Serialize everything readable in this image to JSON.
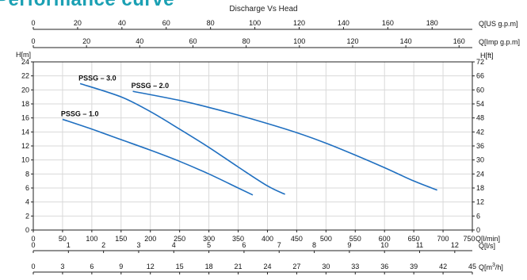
{
  "page": {
    "title": "Performance curve"
  },
  "chart_data": {
    "type": "line",
    "title": "Discharge Vs Head",
    "x_axis": {
      "label": "Q[l/min]",
      "ticks": [
        0,
        50,
        100,
        150,
        200,
        250,
        300,
        350,
        400,
        450,
        500,
        550,
        600,
        650,
        700,
        750
      ],
      "xlim": [
        0,
        750
      ]
    },
    "y_axis": {
      "label": "H[m]",
      "ticks": [
        0,
        2,
        4,
        6,
        8,
        10,
        12,
        14,
        16,
        18,
        20,
        22,
        24
      ],
      "ylim": [
        0,
        24
      ]
    },
    "y_axis_right": {
      "label": "H[ft]",
      "ticks": [
        0,
        6,
        12,
        18,
        24,
        30,
        36,
        42,
        48,
        54,
        60,
        66,
        72
      ],
      "ylim": [
        0,
        72
      ]
    },
    "top_axes": [
      {
        "label": "Q[US g.p.m]",
        "ticks": [
          0,
          20,
          40,
          60,
          80,
          100,
          120,
          140,
          160,
          180
        ],
        "lpm_per_unit": 3.785
      },
      {
        "label": "Q[Imp g.p.m]",
        "ticks": [
          0,
          20,
          40,
          60,
          80,
          100,
          120,
          140,
          160
        ],
        "lpm_per_unit": 4.546
      }
    ],
    "bottom_axes": [
      {
        "label": "Q[l/s]",
        "ticks": [
          0,
          1,
          2,
          3,
          4,
          5,
          6,
          7,
          8,
          9,
          10,
          11,
          12
        ],
        "lpm_per_unit": 60
      },
      {
        "label": "Q[m3/h]",
        "label_base": "Q[m",
        "label_sup": "3",
        "label_tail": "/h]",
        "ticks": [
          0,
          3,
          6,
          9,
          12,
          15,
          18,
          21,
          24,
          27,
          30,
          33,
          36,
          39,
          42,
          45
        ],
        "lpm_per_unit": 16.667
      }
    ],
    "series": [
      {
        "name": "PSSG – 1.0",
        "color": "#1f6fc0",
        "x": [
          50,
          100,
          150,
          200,
          250,
          300,
          350,
          375
        ],
        "y": [
          15.8,
          14.4,
          12.9,
          11.4,
          9.8,
          8.0,
          6.0,
          5.0
        ]
      },
      {
        "name": "PSSG – 3.0",
        "color": "#1f6fc0",
        "x": [
          80,
          150,
          200,
          250,
          300,
          350,
          400,
          430
        ],
        "y": [
          20.9,
          19.0,
          16.9,
          14.4,
          11.8,
          9.0,
          6.3,
          5.1
        ]
      },
      {
        "name": "PSSG – 2.0",
        "color": "#1f6fc0",
        "x": [
          170,
          250,
          300,
          350,
          400,
          450,
          500,
          550,
          600,
          650,
          690
        ],
        "y": [
          19.8,
          18.5,
          17.5,
          16.4,
          15.2,
          13.9,
          12.4,
          10.7,
          8.9,
          7.0,
          5.7
        ]
      }
    ],
    "grid": true
  }
}
